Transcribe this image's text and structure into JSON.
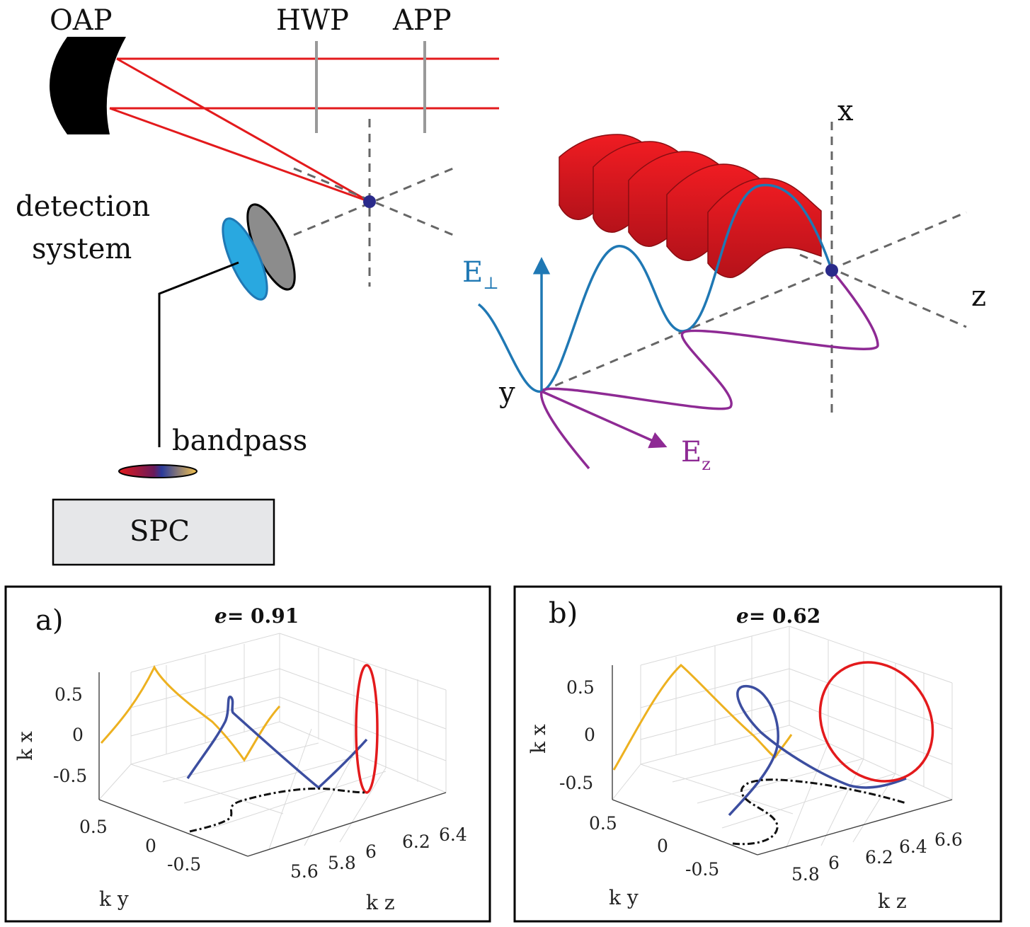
{
  "setup": {
    "labels": {
      "oap": "OAP",
      "hwp": "HWP",
      "app": "APP",
      "detection_line1": "detection",
      "detection_line2": "system",
      "bandpass": "bandpass",
      "spc": "SPC",
      "x_axis": "x",
      "z_axis": "z",
      "y_axis": "y",
      "e_perp_base": "E",
      "e_perp_sub": "⊥",
      "e_z_base": "E",
      "e_z_sub": "z"
    },
    "colors": {
      "beam": "#e31a1c",
      "e_perp": "#1f78b4",
      "e_z": "#8e2a94",
      "focus": "#2a2a8a",
      "dashed_axes": "#666666",
      "optic_rods": "#999999",
      "filter_cyan": "#29a8e0",
      "filter_grey": "#8c8c8c",
      "wave_sheet": "#e31a1c"
    }
  },
  "chart_data": [
    {
      "panel": "a)",
      "type": "line3d",
      "title_symbol": "e",
      "title_value": "= 0.91",
      "xlabel": "k z",
      "ylabel": "k y",
      "zlabel": "k x",
      "kx_ticks": [
        "0.5",
        "0",
        "-0.5"
      ],
      "ky_ticks": [
        "0.5",
        "0",
        "-0.5"
      ],
      "kz_ticks": [
        "5.6",
        "5.8",
        "6",
        "6.2",
        "6.4"
      ],
      "series_colors": {
        "trajectory": "#3c4ea0",
        "projection_kz_kx": "#edb120",
        "projection_ky_kx": "#e31a1c",
        "projection_kz_ky": "#111111"
      }
    },
    {
      "panel": "b)",
      "type": "line3d",
      "title_symbol": "e",
      "title_value": "= 0.62",
      "xlabel": "k z",
      "ylabel": "k y",
      "zlabel": "k x",
      "kx_ticks": [
        "0.5",
        "0",
        "-0.5"
      ],
      "ky_ticks": [
        "0.5",
        "0",
        "-0.5"
      ],
      "kz_ticks": [
        "5.8",
        "6",
        "6.2",
        "6.4",
        "6.6"
      ],
      "series_colors": {
        "trajectory": "#3c4ea0",
        "projection_kz_kx": "#edb120",
        "projection_ky_kx": "#e31a1c",
        "projection_kz_ky": "#111111"
      }
    }
  ]
}
